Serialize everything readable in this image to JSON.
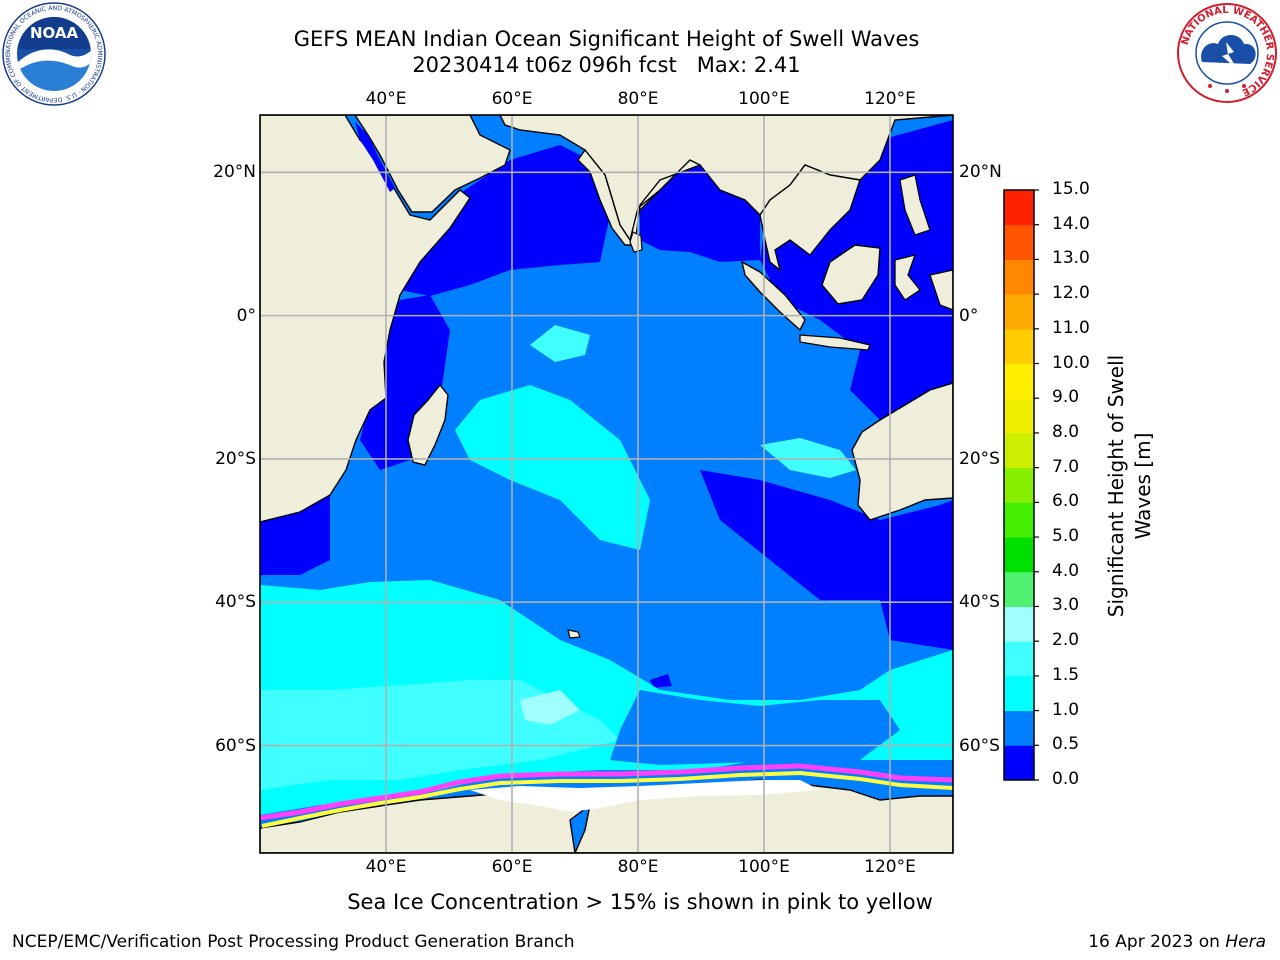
{
  "title": {
    "line1": "GEFS MEAN Indian Ocean Significant Height of Swell Waves",
    "line2": "20230414 t06z 096h fcst   Max: 2.41"
  },
  "map": {
    "lon_labels": [
      "40°E",
      "60°E",
      "80°E",
      "100°E",
      "120°E"
    ],
    "lat_labels": [
      "20°N",
      "0°",
      "20°S",
      "40°S",
      "60°S"
    ],
    "lon_extent": [
      20,
      130
    ],
    "lat_extent": [
      -75,
      28
    ],
    "colors": {
      "land": "#efeedb",
      "ocean_0_0_5": "#0000ff",
      "ocean_0_5_1": "#0080ff",
      "ocean_1_1_5": "#00ffff",
      "ocean_1_5_2": "#40ffff",
      "ice_pink": "#ff40ff",
      "ice_yellow": "#ffff40",
      "grid": "#b0b0b0"
    }
  },
  "colorbar": {
    "ticks": [
      "0.0",
      "0.5",
      "1.0",
      "1.5",
      "2.0",
      "3.0",
      "4.0",
      "5.0",
      "6.0",
      "7.0",
      "8.0",
      "9.0",
      "10.0",
      "11.0",
      "12.0",
      "13.0",
      "14.0",
      "15.0"
    ],
    "colors": [
      "#0000ff",
      "#0080ff",
      "#00ffff",
      "#40ffff",
      "#a0ffff",
      "#50f070",
      "#00e000",
      "#44ee00",
      "#88ee00",
      "#ccee00",
      "#eeee00",
      "#ffee00",
      "#ffcc00",
      "#ffaa00",
      "#ff8800",
      "#ff5500",
      "#ff2200"
    ],
    "label": "Significant Height of Swell Waves [m]"
  },
  "logos": {
    "noaa": "NOAA",
    "noaa_ring": "NATIONAL OCEANIC AND ATMOSPHERIC ADMINISTRATION · U.S. DEPARTMENT OF COMMERCE",
    "nws_ring": "NATIONAL WEATHER SERVICE"
  },
  "note": "Sea Ice Concentration > 15% is shown in pink to yellow",
  "footer": {
    "left": "NCEP/EMC/Verification Post Processing Product Generation Branch",
    "date": "16 Apr 2023 on",
    "host": "Hera"
  }
}
